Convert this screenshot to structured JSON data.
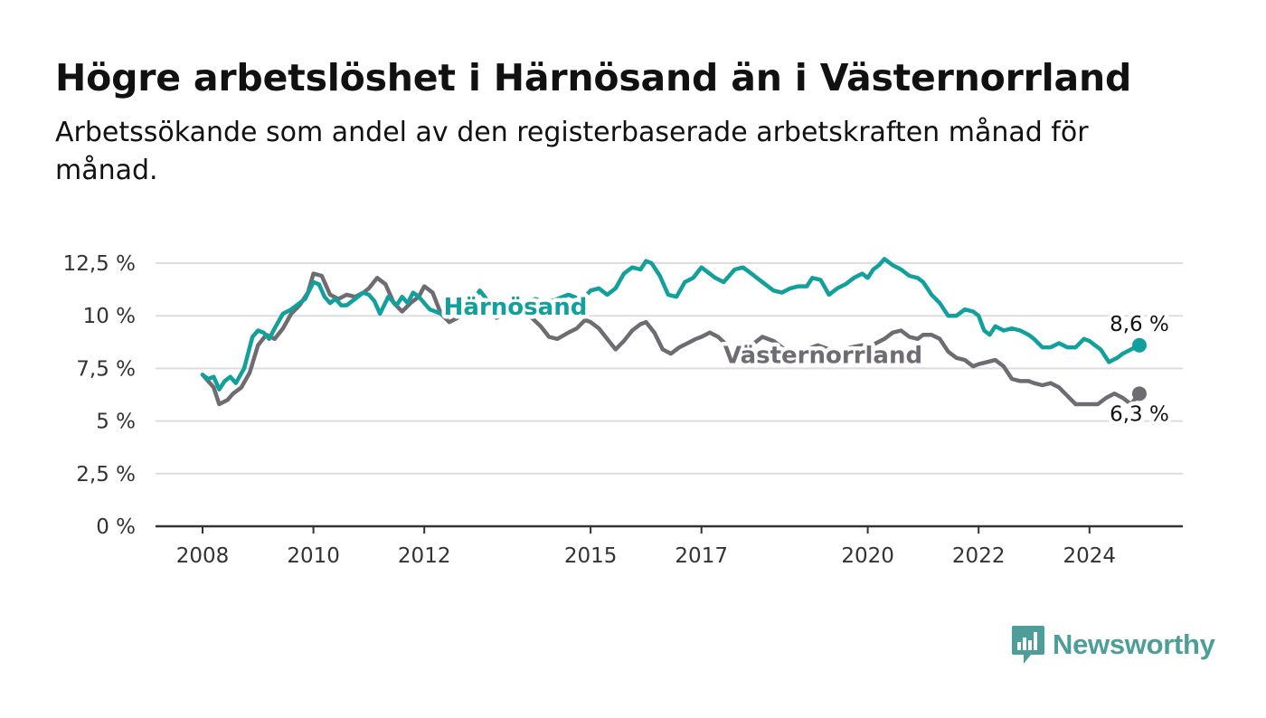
{
  "title": "Högre arbetslöshet i Härnösand än i Västernorrland",
  "subtitle": "Arbetssökande som andel av den registerbaserade arbetskraften månad för månad.",
  "brand": "Newsworthy",
  "colors": {
    "harnosand": "#11a09b",
    "vasternorrland": "#6e6c72",
    "grid": "#dddddd",
    "axis": "#333333",
    "brand": "#4d9e9a"
  },
  "chart_data": {
    "type": "line",
    "title": "Högre arbetslöshet i Härnösand än i Västernorrland",
    "subtitle": "Arbetssökande som andel av den registerbaserade arbetskraften månad för månad.",
    "xlabel": "",
    "ylabel": "",
    "xlim": [
      2007.5,
      2026.0
    ],
    "ylim": [
      0,
      12.5
    ],
    "grid": true,
    "legend": "inline labels",
    "x_ticks": [
      2008,
      2010,
      2012,
      2015,
      2017,
      2020,
      2022,
      2024
    ],
    "x_tick_labels": [
      "2008",
      "2010",
      "2012",
      "2015",
      "2017",
      "2020",
      "2022",
      "2024"
    ],
    "y_ticks": [
      0,
      2.5,
      5,
      7.5,
      10,
      12.5
    ],
    "y_tick_labels": [
      "0 %",
      "2,5 %",
      "5 %",
      "7,5 %",
      "10 %",
      "12,5 %"
    ],
    "series": [
      {
        "name": "Härnösand",
        "color": "#11a09b",
        "end_label": "8,6 %",
        "x": [
          2008.0,
          2008.1,
          2008.2,
          2008.3,
          2008.4,
          2008.5,
          2008.6,
          2008.75,
          2008.9,
          2009.0,
          2009.1,
          2009.2,
          2009.3,
          2009.45,
          2009.6,
          2009.7,
          2009.85,
          2010.0,
          2010.1,
          2010.2,
          2010.3,
          2010.4,
          2010.5,
          2010.6,
          2010.75,
          2010.9,
          2011.0,
          2011.1,
          2011.2,
          2011.35,
          2011.5,
          2011.6,
          2011.7,
          2011.8,
          2011.9,
          2012.0,
          2012.1,
          2012.2,
          2012.3,
          2012.45,
          2012.6,
          2012.75,
          2012.9,
          2013.0,
          2013.15,
          2013.3,
          2013.45,
          2013.6,
          2013.8,
          2014.0,
          2014.2,
          2014.4,
          2014.6,
          2014.8,
          2014.9,
          2015.0,
          2015.15,
          2015.3,
          2015.45,
          2015.6,
          2015.75,
          2015.9,
          2016.0,
          2016.1,
          2016.25,
          2016.4,
          2016.55,
          2016.7,
          2016.85,
          2017.0,
          2017.1,
          2017.25,
          2017.4,
          2017.5,
          2017.6,
          2017.75,
          2017.9,
          2018.0,
          2018.15,
          2018.3,
          2018.45,
          2018.6,
          2018.75,
          2018.9,
          2019.0,
          2019.15,
          2019.3,
          2019.45,
          2019.6,
          2019.75,
          2019.9,
          2020.0,
          2020.1,
          2020.2,
          2020.3,
          2020.45,
          2020.6,
          2020.75,
          2020.9,
          2021.0,
          2021.15,
          2021.3,
          2021.45,
          2021.6,
          2021.75,
          2021.9,
          2022.0,
          2022.1,
          2022.2,
          2022.3,
          2022.45,
          2022.6,
          2022.75,
          2022.9,
          2023.0,
          2023.15,
          2023.3,
          2023.45,
          2023.6,
          2023.75,
          2023.9,
          2024.0,
          2024.1,
          2024.2,
          2024.35,
          2024.5,
          2024.6,
          2024.75,
          2024.9
        ],
        "y": [
          7.2,
          7.0,
          7.1,
          6.5,
          6.9,
          7.1,
          6.8,
          7.5,
          9.0,
          9.3,
          9.2,
          8.9,
          9.4,
          10.1,
          10.3,
          10.5,
          10.8,
          11.6,
          11.5,
          10.9,
          10.6,
          10.8,
          10.5,
          10.5,
          10.8,
          11.1,
          11.0,
          10.7,
          10.1,
          10.9,
          10.5,
          10.9,
          10.6,
          11.1,
          10.9,
          10.6,
          10.3,
          10.2,
          10.1,
          10.5,
          10.9,
          10.8,
          10.8,
          11.2,
          10.7,
          10.5,
          10.5,
          10.7,
          10.6,
          10.8,
          10.6,
          10.8,
          11.0,
          10.8,
          10.9,
          11.2,
          11.3,
          11.0,
          11.3,
          12.0,
          12.3,
          12.2,
          12.6,
          12.5,
          11.9,
          11.0,
          10.9,
          11.6,
          11.8,
          12.3,
          12.1,
          11.8,
          11.6,
          11.9,
          12.2,
          12.3,
          12.0,
          11.8,
          11.5,
          11.2,
          11.1,
          11.3,
          11.4,
          11.4,
          11.8,
          11.7,
          11.0,
          11.3,
          11.5,
          11.8,
          12.0,
          11.8,
          12.2,
          12.4,
          12.7,
          12.4,
          12.2,
          11.9,
          11.8,
          11.6,
          11.0,
          10.6,
          10.0,
          10.0,
          10.3,
          10.2,
          10.0,
          9.3,
          9.1,
          9.5,
          9.3,
          9.4,
          9.3,
          9.1,
          8.9,
          8.5,
          8.5,
          8.7,
          8.5,
          8.5,
          8.9,
          8.8,
          8.6,
          8.4,
          7.8,
          8.0,
          8.2,
          8.4,
          8.6
        ]
      },
      {
        "name": "Västernorrland",
        "color": "#6e6c72",
        "end_label": "6,3 %",
        "x": [
          2008.0,
          2008.1,
          2008.2,
          2008.3,
          2008.45,
          2008.55,
          2008.7,
          2008.85,
          2009.0,
          2009.15,
          2009.3,
          2009.45,
          2009.6,
          2009.75,
          2009.9,
          2010.0,
          2010.15,
          2010.3,
          2010.45,
          2010.6,
          2010.75,
          2010.9,
          2011.0,
          2011.15,
          2011.3,
          2011.45,
          2011.6,
          2011.75,
          2011.9,
          2012.0,
          2012.15,
          2012.3,
          2012.45,
          2012.6,
          2012.8,
          2013.0,
          2013.15,
          2013.3,
          2013.5,
          2013.7,
          2013.9,
          2014.1,
          2014.25,
          2014.4,
          2014.6,
          2014.75,
          2014.9,
          2015.0,
          2015.15,
          2015.3,
          2015.45,
          2015.6,
          2015.75,
          2015.9,
          2016.0,
          2016.15,
          2016.3,
          2016.45,
          2016.6,
          2016.75,
          2016.9,
          2017.0,
          2017.15,
          2017.3,
          2017.5,
          2017.7,
          2017.9,
          2018.1,
          2018.3,
          2018.5,
          2018.7,
          2018.9,
          2019.1,
          2019.3,
          2019.5,
          2019.7,
          2019.9,
          2020.0,
          2020.15,
          2020.3,
          2020.45,
          2020.6,
          2020.75,
          2020.9,
          2021.0,
          2021.15,
          2021.3,
          2021.45,
          2021.6,
          2021.75,
          2021.9,
          2022.0,
          2022.15,
          2022.3,
          2022.45,
          2022.6,
          2022.75,
          2022.9,
          2023.0,
          2023.15,
          2023.3,
          2023.45,
          2023.6,
          2023.75,
          2023.9,
          2024.0,
          2024.15,
          2024.3,
          2024.45,
          2024.6,
          2024.75,
          2024.9
        ],
        "y": [
          7.2,
          6.9,
          6.6,
          5.8,
          6.0,
          6.3,
          6.6,
          7.3,
          8.6,
          9.1,
          8.9,
          9.4,
          10.1,
          10.5,
          11.1,
          12.0,
          11.9,
          11.0,
          10.8,
          11.0,
          10.9,
          11.1,
          11.3,
          11.8,
          11.5,
          10.6,
          10.2,
          10.6,
          10.9,
          11.4,
          11.1,
          10.1,
          9.7,
          9.9,
          10.4,
          10.7,
          10.2,
          9.9,
          10.2,
          10.1,
          10.0,
          9.5,
          9.0,
          8.9,
          9.2,
          9.4,
          9.8,
          9.7,
          9.4,
          8.9,
          8.4,
          8.8,
          9.3,
          9.6,
          9.7,
          9.2,
          8.4,
          8.2,
          8.5,
          8.7,
          8.9,
          9.0,
          9.2,
          9.0,
          8.5,
          8.3,
          8.6,
          9.0,
          8.8,
          8.4,
          8.2,
          8.4,
          8.6,
          8.4,
          8.3,
          8.5,
          8.6,
          8.5,
          8.7,
          8.9,
          9.2,
          9.3,
          9.0,
          8.9,
          9.1,
          9.1,
          8.9,
          8.3,
          8.0,
          7.9,
          7.6,
          7.7,
          7.8,
          7.9,
          7.6,
          7.0,
          6.9,
          6.9,
          6.8,
          6.7,
          6.8,
          6.6,
          6.2,
          5.8,
          5.8,
          5.8,
          5.8,
          6.1,
          6.3,
          6.1,
          5.8,
          6.3
        ]
      }
    ]
  }
}
